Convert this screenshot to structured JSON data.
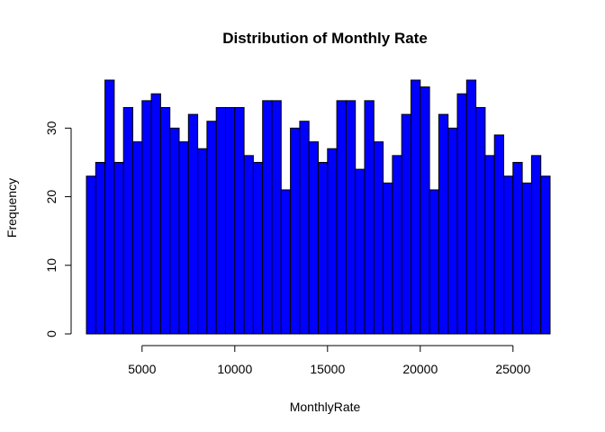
{
  "chart_data": {
    "type": "bar",
    "title": "Distribution of Monthly Rate",
    "xlabel": "MonthlyRate",
    "ylabel": "Frequency",
    "bin_width": 500,
    "bin_start": 2000,
    "values": [
      23,
      25,
      37,
      25,
      33,
      28,
      34,
      35,
      33,
      30,
      28,
      32,
      27,
      31,
      33,
      33,
      33,
      26,
      25,
      34,
      34,
      21,
      30,
      31,
      28,
      25,
      27,
      34,
      34,
      24,
      34,
      28,
      22,
      26,
      32,
      37,
      36,
      21,
      32,
      30,
      35,
      37,
      33,
      26,
      29,
      23,
      25,
      22,
      26,
      23
    ],
    "xlim": [
      2000,
      27000
    ],
    "ylim": [
      0,
      37
    ],
    "x_ticks": [
      5000,
      10000,
      15000,
      20000,
      25000
    ],
    "x_tick_labels": [
      "5000",
      "10000",
      "15000",
      "20000",
      "25000"
    ],
    "y_ticks": [
      0,
      10,
      20,
      30
    ],
    "y_tick_labels": [
      "0",
      "10",
      "20",
      "30"
    ],
    "bar_color": "#0000ff",
    "grid": false
  }
}
